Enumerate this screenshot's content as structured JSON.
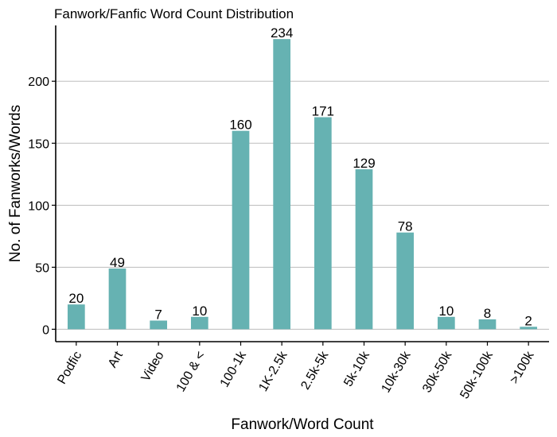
{
  "chart_data": {
    "type": "bar",
    "title": "Fanwork/Fanfic Word Count Distribution",
    "xlabel": "Fanwork/Word Count",
    "ylabel": "No. of Fanworks/Words",
    "categories": [
      "Podfic",
      "Art",
      "Video",
      "100 & <",
      "100-1k",
      "1K-2.5k",
      "2.5k-5k",
      "5k-10k",
      "10k-30k",
      "30k-50k",
      "50k-100k",
      ">100k"
    ],
    "values": [
      20,
      49,
      7,
      10,
      160,
      234,
      171,
      129,
      78,
      10,
      8,
      2
    ],
    "yticks": [
      0,
      50,
      100,
      150,
      200
    ],
    "ylim": [
      -10,
      245
    ],
    "grid": "horizontal",
    "bar_color": "#66b2b2"
  }
}
